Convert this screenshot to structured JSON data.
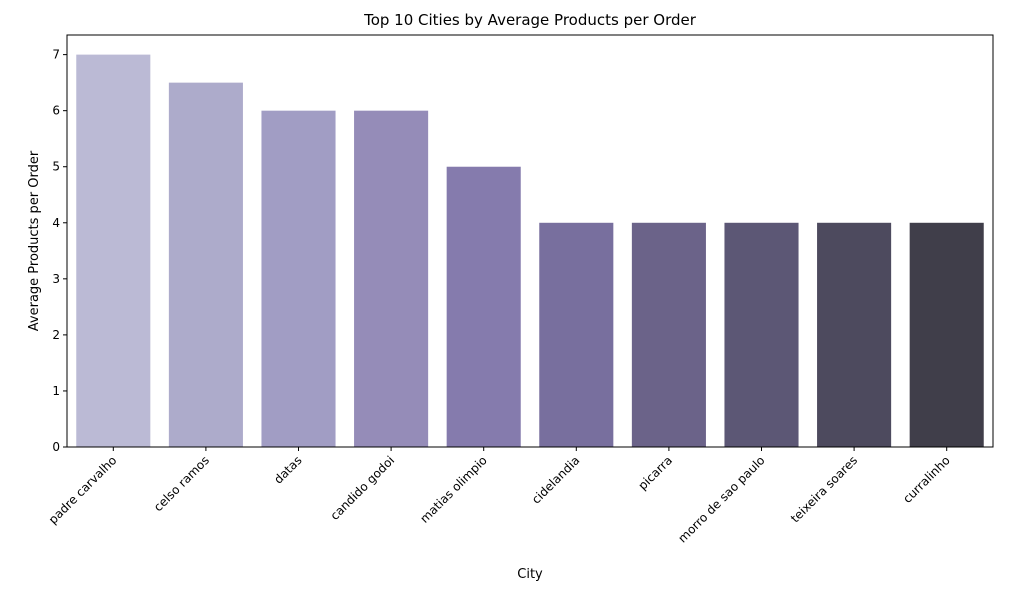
{
  "chart_data": {
    "type": "bar",
    "title": "Top 10 Cities by Average Products per Order",
    "xlabel": "City",
    "ylabel": "Average Products per Order",
    "categories": [
      "padre carvalho",
      "celso ramos",
      "datas",
      "candido godoi",
      "matias olimpio",
      "cidelandia",
      "picarra",
      "morro de sao paulo",
      "teixeira soares",
      "curralinho"
    ],
    "values": [
      7,
      6.5,
      6,
      6,
      5,
      4,
      4,
      4,
      4,
      4
    ],
    "ylim": [
      0,
      7.35
    ],
    "yticks": [
      0,
      1,
      2,
      3,
      4,
      5,
      6,
      7
    ],
    "grid": false,
    "legend": "none",
    "colors": [
      "#bbbad5",
      "#adabcb",
      "#a19dc4",
      "#958cb8",
      "#857bad",
      "#786f9e",
      "#6b6389",
      "#5c5775",
      "#4d4a5e",
      "#403e4a"
    ]
  }
}
